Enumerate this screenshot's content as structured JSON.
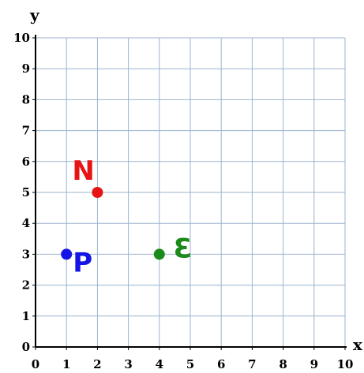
{
  "chart_data": {
    "type": "scatter",
    "xlabel": "x",
    "ylabel": "y",
    "xlim": [
      0,
      10
    ],
    "ylim": [
      0,
      10
    ],
    "x_ticks": [
      0,
      1,
      2,
      3,
      4,
      5,
      6,
      7,
      8,
      9,
      10
    ],
    "y_ticks": [
      0,
      1,
      2,
      3,
      4,
      5,
      6,
      7,
      8,
      9,
      10
    ],
    "grid": true,
    "points": [
      {
        "label": "P",
        "x": 1,
        "y": 3,
        "color": "#1414e6"
      },
      {
        "label": "N",
        "x": 2,
        "y": 5,
        "color": "#e61414"
      },
      {
        "label": "Ɛ",
        "x": 4,
        "y": 3,
        "color": "#1a8a1a"
      }
    ],
    "grid_color": "#9bb3cf",
    "axis_color": "#000000"
  }
}
